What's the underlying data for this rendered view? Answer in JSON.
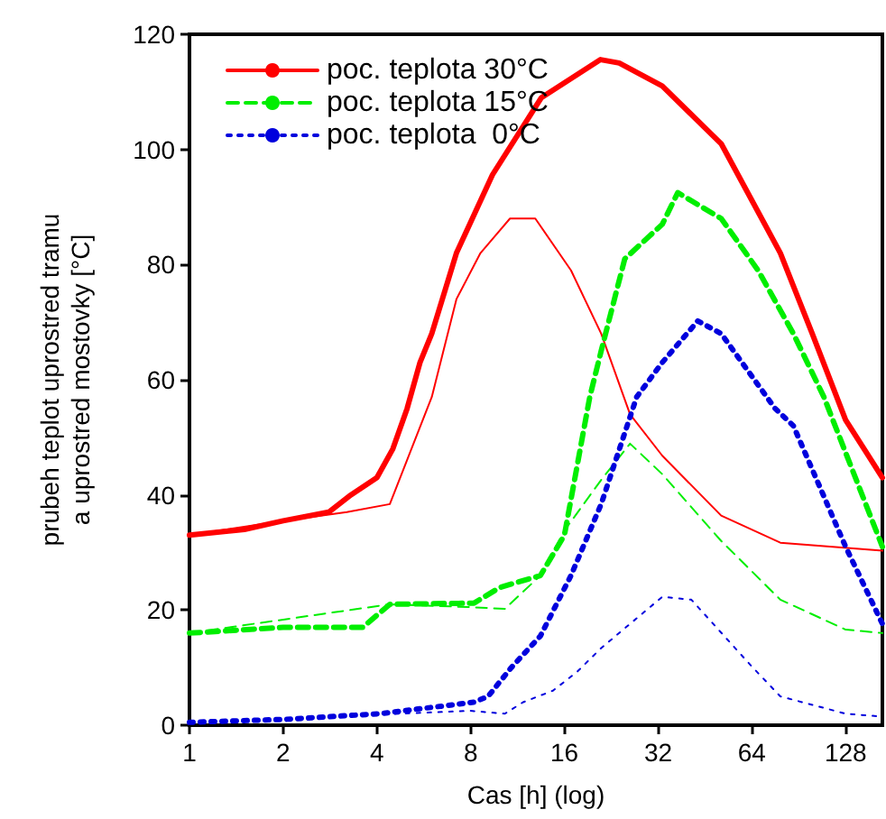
{
  "chart_data": {
    "type": "line",
    "xlabel": "Cas [h] (log)",
    "ylabel": "prubeh teplot uprostred tramu\na uprostred mostovky [°C]",
    "log": "x",
    "xlim": [
      1,
      168
    ],
    "xticks": [
      1,
      2,
      4,
      8,
      16,
      32,
      64,
      128
    ],
    "ylim": [
      0,
      120
    ],
    "yticks": [
      0,
      20,
      40,
      60,
      80,
      100,
      120
    ],
    "grid": false,
    "legend": "top left",
    "marker": "none",
    "series": [
      {
        "name": "poc. teplota 30°C",
        "color": "#ff0000",
        "line_style": "solid",
        "x": [
          1,
          1.5,
          2,
          2.8,
          3.3,
          4,
          4.5,
          5,
          5.5,
          6,
          7.2,
          9.4,
          13.5,
          20.9,
          24,
          33,
          51,
          79,
          100,
          128,
          168
        ],
        "values": [
          33,
          34,
          35.5,
          37,
          40,
          43,
          48,
          55,
          63,
          68,
          82,
          95.6,
          109,
          115.6,
          115,
          111,
          101,
          82,
          68,
          53,
          43
        ]
      },
      {
        "color": "#ff0000",
        "line_style": "solid",
        "x": [
          1,
          2,
          3.2,
          4.4,
          6,
          7.2,
          8.6,
          10.7,
          12.9,
          16.8,
          21,
          26,
          33,
          51,
          79,
          168
        ],
        "values": [
          33,
          35.5,
          37,
          38.4,
          57,
          74,
          82,
          88,
          88,
          79,
          68,
          54,
          46.8,
          36.4,
          31.7,
          30.3
        ]
      },
      {
        "name": "poc. teplota 15°C",
        "color": "#00ee00",
        "line_style": "dashed",
        "x": [
          1,
          2,
          3.6,
          4.4,
          8.2,
          9.9,
          13.4,
          16,
          19.3,
          21,
          25,
          33,
          37,
          51,
          67,
          87,
          109,
          168
        ],
        "values": [
          16,
          17,
          17,
          21,
          21.2,
          23.9,
          26,
          33,
          57,
          65,
          81,
          87,
          92.5,
          88,
          79,
          68,
          57,
          31
        ]
      },
      {
        "color": "#00ee00",
        "line_style": "dashed",
        "x": [
          1,
          4.4,
          8,
          10.3,
          13.4,
          16,
          21,
          26,
          33,
          51,
          79,
          128,
          168
        ],
        "values": [
          16,
          21,
          20.5,
          20.2,
          26,
          33.8,
          42.6,
          48.9,
          43.6,
          32,
          21.8,
          16.6,
          16
        ]
      },
      {
        "name": "poc. teplota  0°C",
        "color": "#0000dd",
        "line_style": "dotted",
        "x": [
          1,
          2,
          4.1,
          8.2,
          9.1,
          10.8,
          13.4,
          16.8,
          21,
          27.3,
          33,
          42.9,
          51,
          76,
          87,
          128,
          168
        ],
        "values": [
          0.5,
          1,
          2,
          4,
          5,
          10,
          15.5,
          26,
          38.4,
          57,
          63,
          70.2,
          68,
          55,
          52,
          31,
          17.6
        ]
      },
      {
        "color": "#0000dd",
        "line_style": "dotted",
        "x": [
          1,
          8,
          10.3,
          11.8,
          14.7,
          17.6,
          21,
          26,
          33,
          40.9,
          63.7,
          79,
          128,
          168
        ],
        "values": [
          0.5,
          2.5,
          2,
          4,
          6,
          9.3,
          13.4,
          17.6,
          22.3,
          21.8,
          10.3,
          5,
          2,
          1.5
        ]
      }
    ]
  }
}
